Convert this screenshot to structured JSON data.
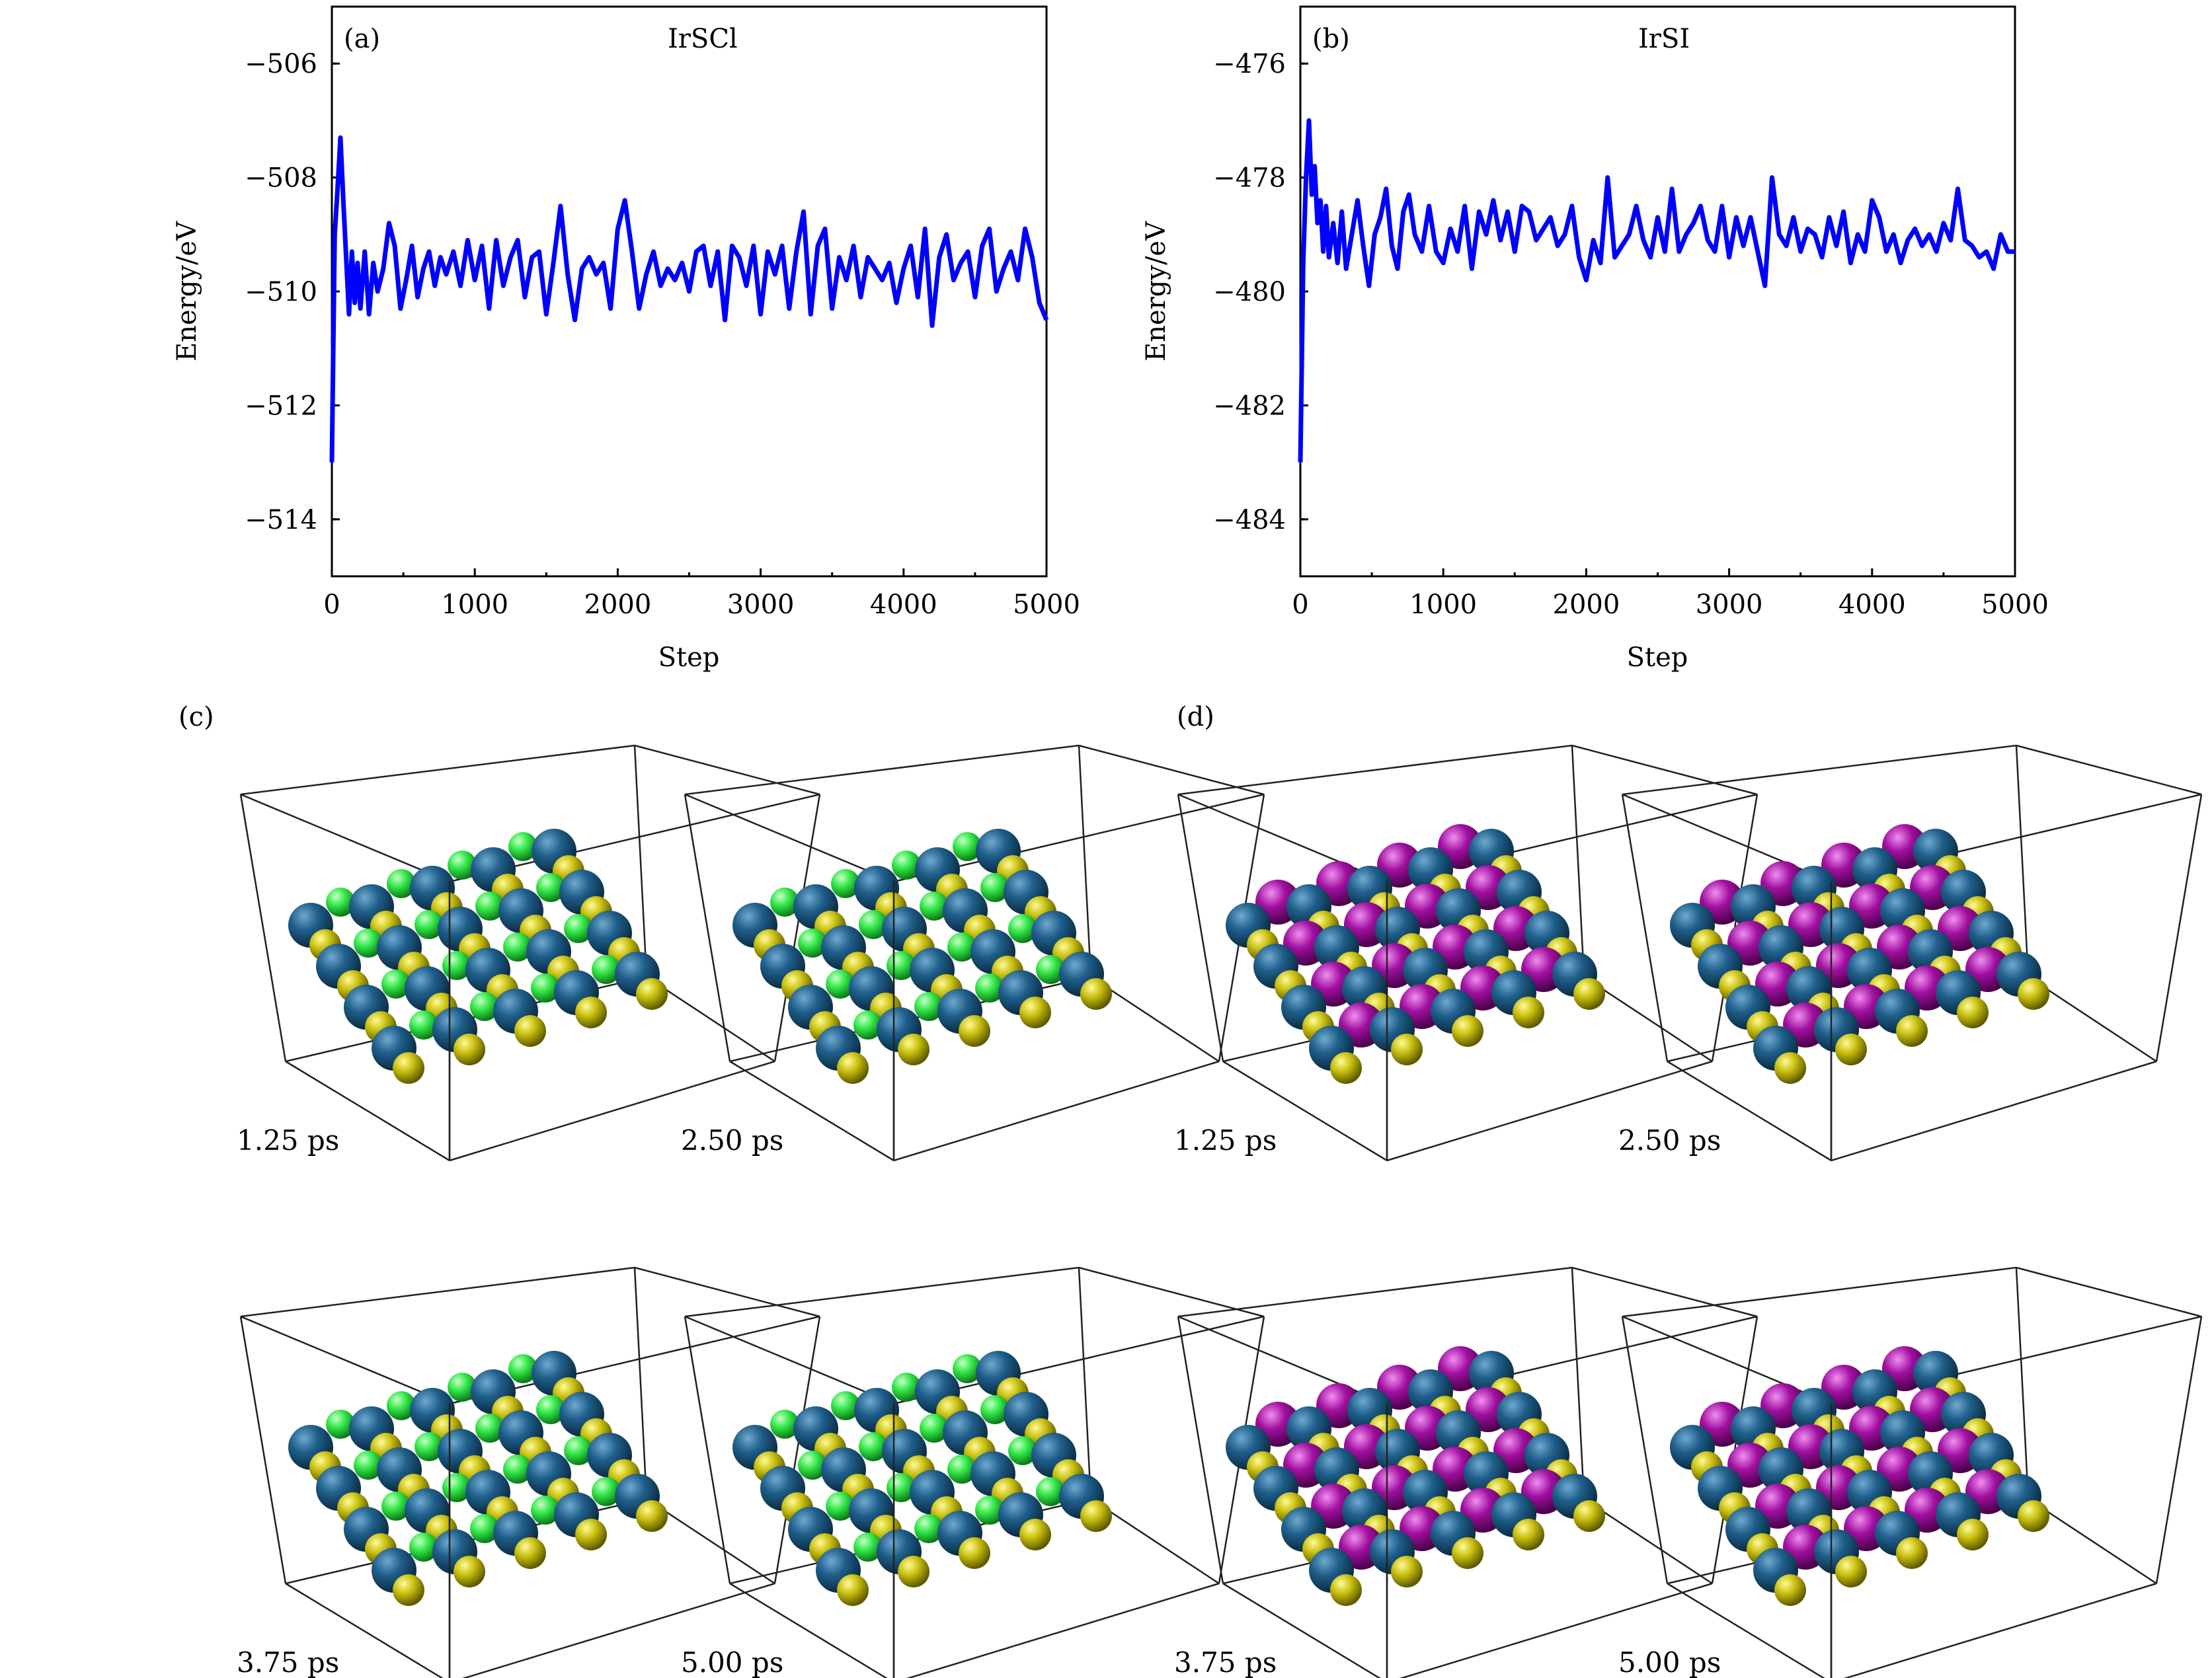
{
  "chart_data": [
    {
      "type": "line",
      "panel_label": "(a)",
      "title": "IrSCl",
      "xlabel": "Step",
      "ylabel": "Energy/eV",
      "xlim": [
        0,
        5000
      ],
      "ylim": [
        -515,
        -505
      ],
      "xticks": [
        0,
        1000,
        2000,
        3000,
        4000,
        5000
      ],
      "yticks": [
        -506,
        -508,
        -510,
        -512,
        -514
      ],
      "ytick_labels": [
        "−506",
        "−508",
        "−510",
        "−512",
        "−514"
      ],
      "color": "#0000ff",
      "series": [
        {
          "x": [
            0,
            20,
            40,
            60,
            80,
            100,
            120,
            140,
            160,
            180,
            200,
            230,
            260,
            290,
            320,
            360,
            400,
            440,
            480,
            520,
            560,
            600,
            640,
            680,
            720,
            760,
            800,
            850,
            900,
            950,
            1000,
            1050,
            1100,
            1150,
            1200,
            1250,
            1300,
            1350,
            1400,
            1450,
            1500,
            1550,
            1600,
            1650,
            1700,
            1750,
            1800,
            1850,
            1900,
            1950,
            2000,
            2050,
            2100,
            2150,
            2200,
            2250,
            2300,
            2350,
            2400,
            2450,
            2500,
            2550,
            2600,
            2650,
            2700,
            2750,
            2800,
            2850,
            2900,
            2950,
            3000,
            3050,
            3100,
            3150,
            3200,
            3250,
            3300,
            3350,
            3400,
            3450,
            3500,
            3550,
            3600,
            3650,
            3700,
            3750,
            3800,
            3850,
            3900,
            3950,
            4000,
            4050,
            4100,
            4150,
            4200,
            4250,
            4300,
            4350,
            4400,
            4450,
            4500,
            4550,
            4600,
            4650,
            4700,
            4750,
            4800,
            4850,
            4900,
            4950,
            5000
          ],
          "y": [
            -513.0,
            -509.0,
            -508.2,
            -507.3,
            -508.4,
            -509.4,
            -510.4,
            -509.3,
            -510.2,
            -509.5,
            -510.3,
            -509.3,
            -510.4,
            -509.5,
            -510.0,
            -509.6,
            -508.8,
            -509.2,
            -510.3,
            -509.8,
            -509.2,
            -510.1,
            -509.6,
            -509.3,
            -509.9,
            -509.4,
            -509.7,
            -509.3,
            -509.9,
            -509.1,
            -509.8,
            -509.2,
            -510.3,
            -509.1,
            -509.9,
            -509.4,
            -509.1,
            -510.1,
            -509.4,
            -509.3,
            -510.4,
            -509.5,
            -508.5,
            -509.7,
            -510.5,
            -509.6,
            -509.4,
            -509.7,
            -509.5,
            -510.3,
            -508.9,
            -508.4,
            -509.3,
            -510.3,
            -509.7,
            -509.3,
            -509.9,
            -509.6,
            -509.8,
            -509.5,
            -510.0,
            -509.3,
            -509.2,
            -509.9,
            -509.3,
            -510.5,
            -509.2,
            -509.4,
            -509.9,
            -509.2,
            -510.4,
            -509.3,
            -509.7,
            -509.2,
            -510.3,
            -509.3,
            -508.6,
            -510.4,
            -509.2,
            -508.9,
            -510.3,
            -509.4,
            -509.8,
            -509.2,
            -510.1,
            -509.4,
            -509.6,
            -509.8,
            -509.5,
            -510.2,
            -509.6,
            -509.2,
            -510.1,
            -508.9,
            -510.6,
            -509.4,
            -509.0,
            -509.8,
            -509.5,
            -509.3,
            -510.1,
            -509.2,
            -508.9,
            -510.0,
            -509.6,
            -509.3,
            -509.8,
            -508.9,
            -509.4,
            -510.2,
            -510.5
          ]
        }
      ]
    },
    {
      "type": "line",
      "panel_label": "(b)",
      "title": "IrSI",
      "xlabel": "Step",
      "ylabel": "Energy/eV",
      "xlim": [
        0,
        5000
      ],
      "ylim": [
        -485,
        -475
      ],
      "xticks": [
        0,
        1000,
        2000,
        3000,
        4000,
        5000
      ],
      "yticks": [
        -476,
        -478,
        -480,
        -482,
        -484
      ],
      "ytick_labels": [
        "−476",
        "−478",
        "−480",
        "−482",
        "−484"
      ],
      "color": "#0000ff",
      "series": [
        {
          "x": [
            0,
            20,
            40,
            60,
            80,
            100,
            120,
            140,
            160,
            180,
            200,
            230,
            260,
            290,
            320,
            360,
            400,
            440,
            480,
            520,
            560,
            600,
            640,
            680,
            720,
            760,
            800,
            850,
            900,
            950,
            1000,
            1050,
            1100,
            1150,
            1200,
            1250,
            1300,
            1350,
            1400,
            1450,
            1500,
            1550,
            1600,
            1650,
            1700,
            1750,
            1800,
            1850,
            1900,
            1950,
            2000,
            2050,
            2100,
            2150,
            2200,
            2250,
            2300,
            2350,
            2400,
            2450,
            2500,
            2550,
            2600,
            2650,
            2700,
            2750,
            2800,
            2850,
            2900,
            2950,
            3000,
            3050,
            3100,
            3150,
            3200,
            3250,
            3300,
            3350,
            3400,
            3450,
            3500,
            3550,
            3600,
            3650,
            3700,
            3750,
            3800,
            3850,
            3900,
            3950,
            4000,
            4050,
            4100,
            4150,
            4200,
            4250,
            4300,
            4350,
            4400,
            4450,
            4500,
            4550,
            4600,
            4650,
            4700,
            4750,
            4800,
            4850,
            4900,
            4950,
            5000
          ],
          "y": [
            -483.0,
            -479.5,
            -478.0,
            -477.0,
            -478.3,
            -477.8,
            -478.8,
            -478.4,
            -479.3,
            -478.5,
            -479.4,
            -478.8,
            -479.5,
            -478.6,
            -479.6,
            -479.0,
            -478.4,
            -479.2,
            -479.9,
            -479.0,
            -478.7,
            -478.2,
            -479.2,
            -479.6,
            -478.6,
            -478.3,
            -479.0,
            -479.3,
            -478.5,
            -479.3,
            -479.5,
            -478.9,
            -479.3,
            -478.5,
            -479.6,
            -478.6,
            -479.0,
            -478.4,
            -479.1,
            -478.6,
            -479.3,
            -478.5,
            -478.6,
            -479.1,
            -478.9,
            -478.7,
            -479.2,
            -479.0,
            -478.5,
            -479.4,
            -479.8,
            -479.1,
            -479.5,
            -478.0,
            -479.4,
            -479.2,
            -479.0,
            -478.5,
            -479.1,
            -479.4,
            -478.7,
            -479.3,
            -478.2,
            -479.3,
            -479.0,
            -478.8,
            -478.5,
            -479.1,
            -479.3,
            -478.5,
            -479.4,
            -478.7,
            -479.2,
            -478.7,
            -479.3,
            -479.9,
            -478.0,
            -479.0,
            -479.2,
            -478.7,
            -479.3,
            -478.9,
            -479.0,
            -479.4,
            -478.7,
            -479.2,
            -478.6,
            -479.5,
            -479.0,
            -479.3,
            -478.4,
            -478.7,
            -479.3,
            -479.0,
            -479.5,
            -479.1,
            -478.9,
            -479.2,
            -479.0,
            -479.3,
            -478.8,
            -479.1,
            -478.2,
            -479.1,
            -479.2,
            -479.4,
            -479.3,
            -479.6,
            -479.0,
            -479.3,
            -479.3
          ]
        }
      ]
    }
  ],
  "panels": {
    "c": {
      "label": "(c)",
      "snapshots": [
        "1.25 ps",
        "2.50 ps",
        "3.75 ps",
        "5.00 ps"
      ],
      "atom_colors": {
        "Ir": "#1f5f8b",
        "S": "#c9c010",
        "X": "#35e84a"
      }
    },
    "d": {
      "label": "(d)",
      "snapshots": [
        "1.25 ps",
        "2.50 ps",
        "3.75 ps",
        "5.00 ps"
      ],
      "atom_colors": {
        "Ir": "#1f5f8b",
        "S": "#c9c010",
        "X": "#a0109f"
      }
    }
  },
  "colors": {
    "time_label": "#e8231e",
    "line": "#0000ff"
  }
}
